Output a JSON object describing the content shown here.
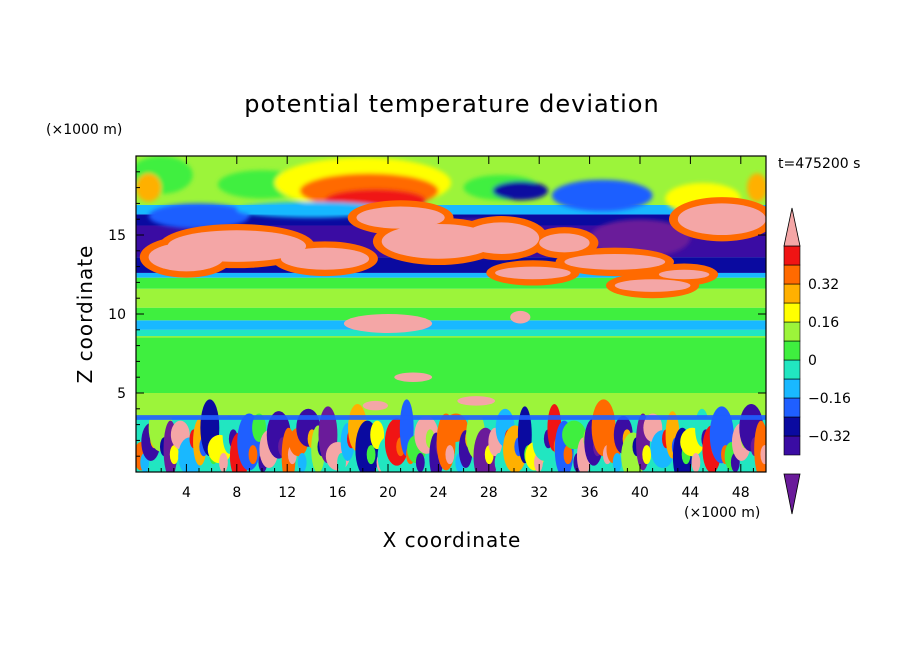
{
  "chart_data": {
    "type": "heatmap",
    "title": "potential temperature deviation",
    "xlabel": "X coordinate",
    "ylabel": "Z coordinate",
    "x_unit": "(×1000 m)",
    "y_unit": "(×1000 m)",
    "time_label": "t=475200 s",
    "xlim": [
      0,
      50
    ],
    "ylim": [
      0,
      20
    ],
    "x_ticks": [
      4,
      8,
      12,
      16,
      20,
      24,
      28,
      32,
      36,
      40,
      44,
      48
    ],
    "x_tick_labels": [
      "4",
      "8",
      "12",
      "16",
      "20",
      "24",
      "28",
      "32",
      "36",
      "40",
      "44",
      "48"
    ],
    "y_ticks": [
      5,
      10,
      15
    ],
    "y_tick_labels": [
      "5",
      "10",
      "15"
    ],
    "colorbar": {
      "levels": [
        -0.48,
        -0.4,
        -0.32,
        -0.24,
        -0.16,
        -0.08,
        0,
        0.08,
        0.16,
        0.24,
        0.32,
        0.4,
        0.48
      ],
      "tick_values": [
        -0.32,
        -0.16,
        0,
        0.16,
        0.32
      ],
      "tick_labels": [
        "−0.32",
        "−0.16",
        "0",
        "0.16",
        "0.32"
      ],
      "colors": [
        "#6a1b9a",
        "#3a0ca3",
        "#0a0aa0",
        "#1f5fff",
        "#19b8ff",
        "#21e6c1",
        "#3fef3f",
        "#9cf43a",
        "#ffff00",
        "#ffb000",
        "#ff6a00",
        "#f01414",
        "#f4a6a6"
      ],
      "extend": "both"
    },
    "field_bands": [
      {
        "z_range": [
          16.5,
          20
        ],
        "category": "warm-cool mix near tropopause"
      },
      {
        "z_range": [
          12.5,
          16.5
        ],
        "category": "cold band with warm cloud patches"
      },
      {
        "z_range": [
          3.5,
          12.5
        ],
        "category": "near-zero"
      },
      {
        "z_range": [
          0,
          3.5
        ],
        "category": "turbulent boundary layer"
      }
    ]
  }
}
